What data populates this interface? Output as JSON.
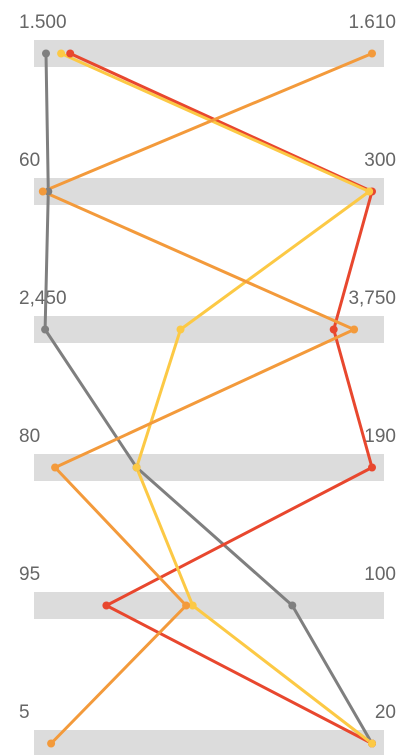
{
  "chart_data": {
    "type": "line",
    "subtype": "parallel-coordinates",
    "title": "",
    "axes": [
      {
        "min_label": "1.500",
        "max_label": "1.610",
        "min": 1500,
        "max": 1610
      },
      {
        "min_label": "60",
        "max_label": "300",
        "min": 60,
        "max": 300
      },
      {
        "min_label": "2,450",
        "max_label": "3,750",
        "min": 2450,
        "max": 3750
      },
      {
        "min_label": "80",
        "max_label": "190",
        "min": 80,
        "max": 190
      },
      {
        "min_label": "95",
        "max_label": "100",
        "min": 95,
        "max": 100
      },
      {
        "min_label": "5",
        "max_label": "20",
        "min": 5,
        "max": 20
      }
    ],
    "series": [
      {
        "color": "#7f7f7f",
        "values": [
          1502,
          66,
          2470,
          112,
          98.8,
          20
        ]
      },
      {
        "color": "#e8472e",
        "values": [
          1510,
          300,
          3600,
          190,
          96.0,
          20
        ]
      },
      {
        "color": "#fcc945",
        "values": [
          1507,
          298,
          3000,
          112,
          97.3,
          20
        ]
      },
      {
        "color": "#f39a3b",
        "values": [
          1610,
          62,
          3680,
          85,
          97.2,
          5.5
        ]
      }
    ],
    "grid": false,
    "legend": "none"
  }
}
